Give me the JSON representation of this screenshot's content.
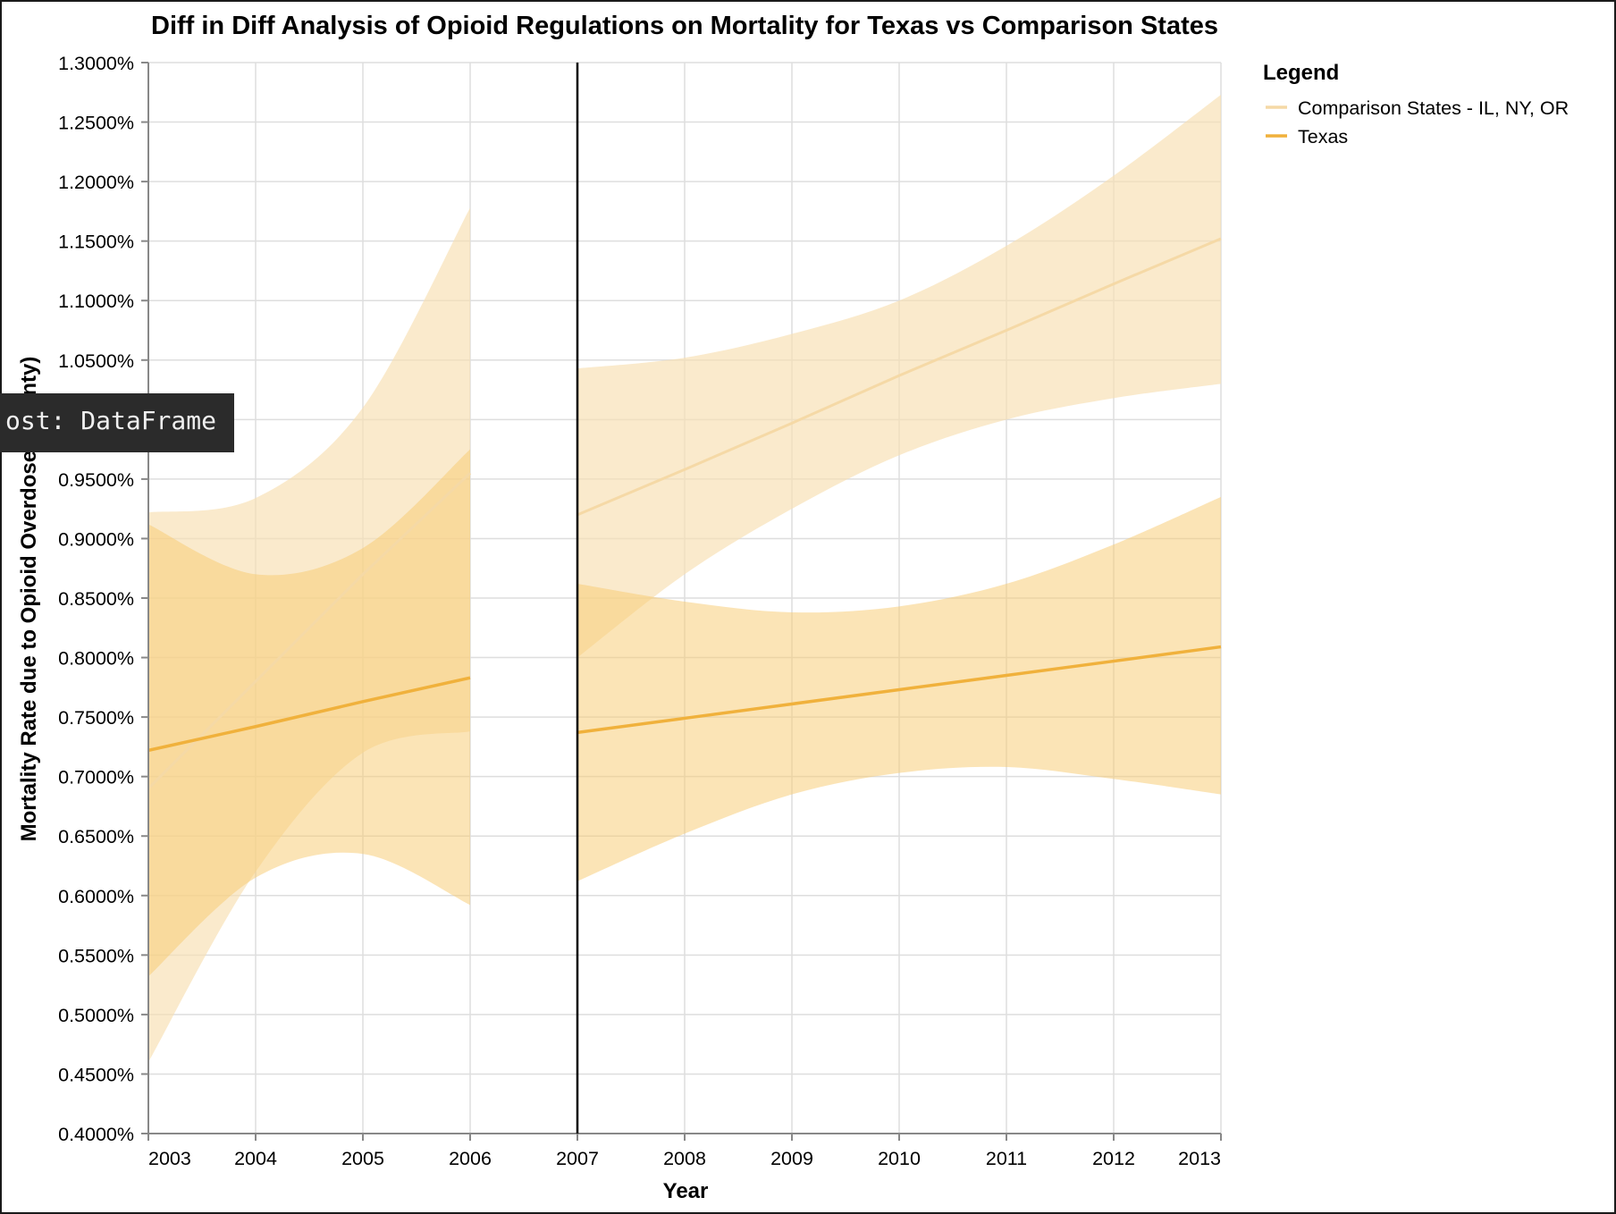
{
  "colors": {
    "comparison": "#f5d9a6",
    "comparison_band": "#f7dfb0",
    "texas": "#f0b13c",
    "texas_band": "#f7c96d",
    "grid": "#dedede",
    "axis": "#888888",
    "cutoff": "#000000"
  },
  "tooltip": {
    "text": "ost: DataFrame"
  },
  "chart_data": {
    "type": "line",
    "title": "Diff in Diff Analysis of Opioid Regulations on Mortality for Texas vs Comparison States",
    "xlabel": "Year",
    "ylabel": "Mortality Rate due to Opioid Overdose (County)",
    "xlim": [
      2003,
      2013
    ],
    "ylim": [
      0.004,
      0.013
    ],
    "x_ticks": [
      2003,
      2004,
      2005,
      2006,
      2007,
      2008,
      2009,
      2010,
      2011,
      2012,
      2013
    ],
    "y_ticks": [
      0.004,
      0.0045,
      0.005,
      0.0055,
      0.006,
      0.0065,
      0.007,
      0.0075,
      0.008,
      0.0085,
      0.009,
      0.0095,
      0.01,
      0.0105,
      0.011,
      0.0115,
      0.012,
      0.0125,
      0.013
    ],
    "y_tick_format": "percent_4dp",
    "grid": true,
    "policy_cutoff_year": 2007,
    "legend": {
      "title": "Legend",
      "placement": "top-right",
      "entries": [
        "Comparison States - IL, NY, OR",
        "Texas"
      ]
    },
    "series": [
      {
        "name": "Comparison States - IL, NY, OR",
        "segments": [
          {
            "x": [
              2003,
              2004,
              2005,
              2006
            ],
            "y": [
              0.0069,
              0.0078,
              0.0087,
              0.00955
            ],
            "lower": [
              0.0046,
              0.0062,
              0.0072,
              0.00738
            ],
            "upper": [
              0.00922,
              0.00934,
              0.0101,
              0.01178
            ]
          },
          {
            "x": [
              2007,
              2008,
              2009,
              2010,
              2011,
              2012,
              2013
            ],
            "y": [
              0.0092,
              0.00958,
              0.00997,
              0.01037,
              0.01075,
              0.01114,
              0.01152
            ],
            "lower": [
              0.008,
              0.0087,
              0.00925,
              0.0097,
              0.01,
              0.01018,
              0.0103
            ],
            "upper": [
              0.01043,
              0.01052,
              0.01072,
              0.011,
              0.01146,
              0.01205,
              0.01273
            ]
          }
        ]
      },
      {
        "name": "Texas",
        "segments": [
          {
            "x": [
              2003,
              2004,
              2005,
              2006
            ],
            "y": [
              0.00722,
              0.00742,
              0.00763,
              0.00783
            ],
            "lower": [
              0.00532,
              0.00615,
              0.00635,
              0.00592
            ],
            "upper": [
              0.00912,
              0.0087,
              0.00892,
              0.00975
            ]
          },
          {
            "x": [
              2007,
              2008,
              2009,
              2010,
              2011,
              2012,
              2013
            ],
            "y": [
              0.00737,
              0.00749,
              0.00761,
              0.00773,
              0.00785,
              0.00797,
              0.00809
            ],
            "lower": [
              0.00612,
              0.00652,
              0.00685,
              0.00703,
              0.00708,
              0.00698,
              0.00685
            ],
            "upper": [
              0.00862,
              0.00847,
              0.00838,
              0.00843,
              0.00862,
              0.00895,
              0.00935
            ]
          }
        ]
      }
    ]
  }
}
